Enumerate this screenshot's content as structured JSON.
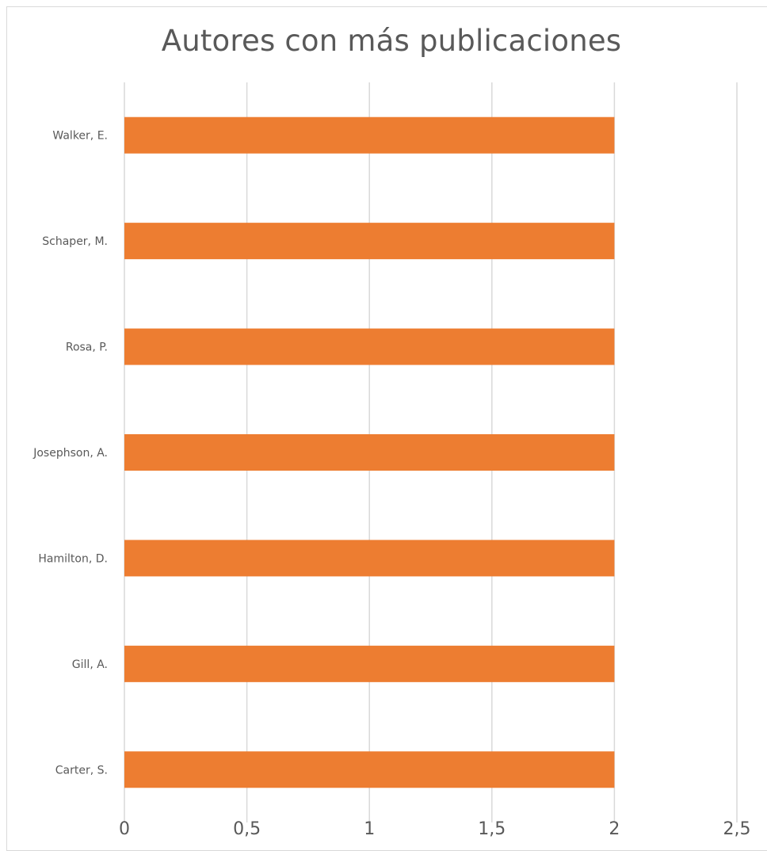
{
  "chart_data": {
    "type": "bar",
    "orientation": "horizontal",
    "title": "Autores con más publicaciones",
    "categories": [
      "Walker, E.",
      "Schaper, M.",
      "Rosa, P.",
      "Josephson, A.",
      "Hamilton, D.",
      "Gill, A.",
      "Carter, S."
    ],
    "values": [
      2,
      2,
      2,
      2,
      2,
      2,
      2
    ],
    "xlim": [
      0,
      2.5
    ],
    "xticks": [
      "0",
      "0,5",
      "1",
      "1,5",
      "2",
      "2,5"
    ],
    "xlabel": "",
    "ylabel": "",
    "grid": "vertical",
    "legend": "none",
    "bar_color": "#ed7d31",
    "grid_color": "#d9d9d9"
  }
}
